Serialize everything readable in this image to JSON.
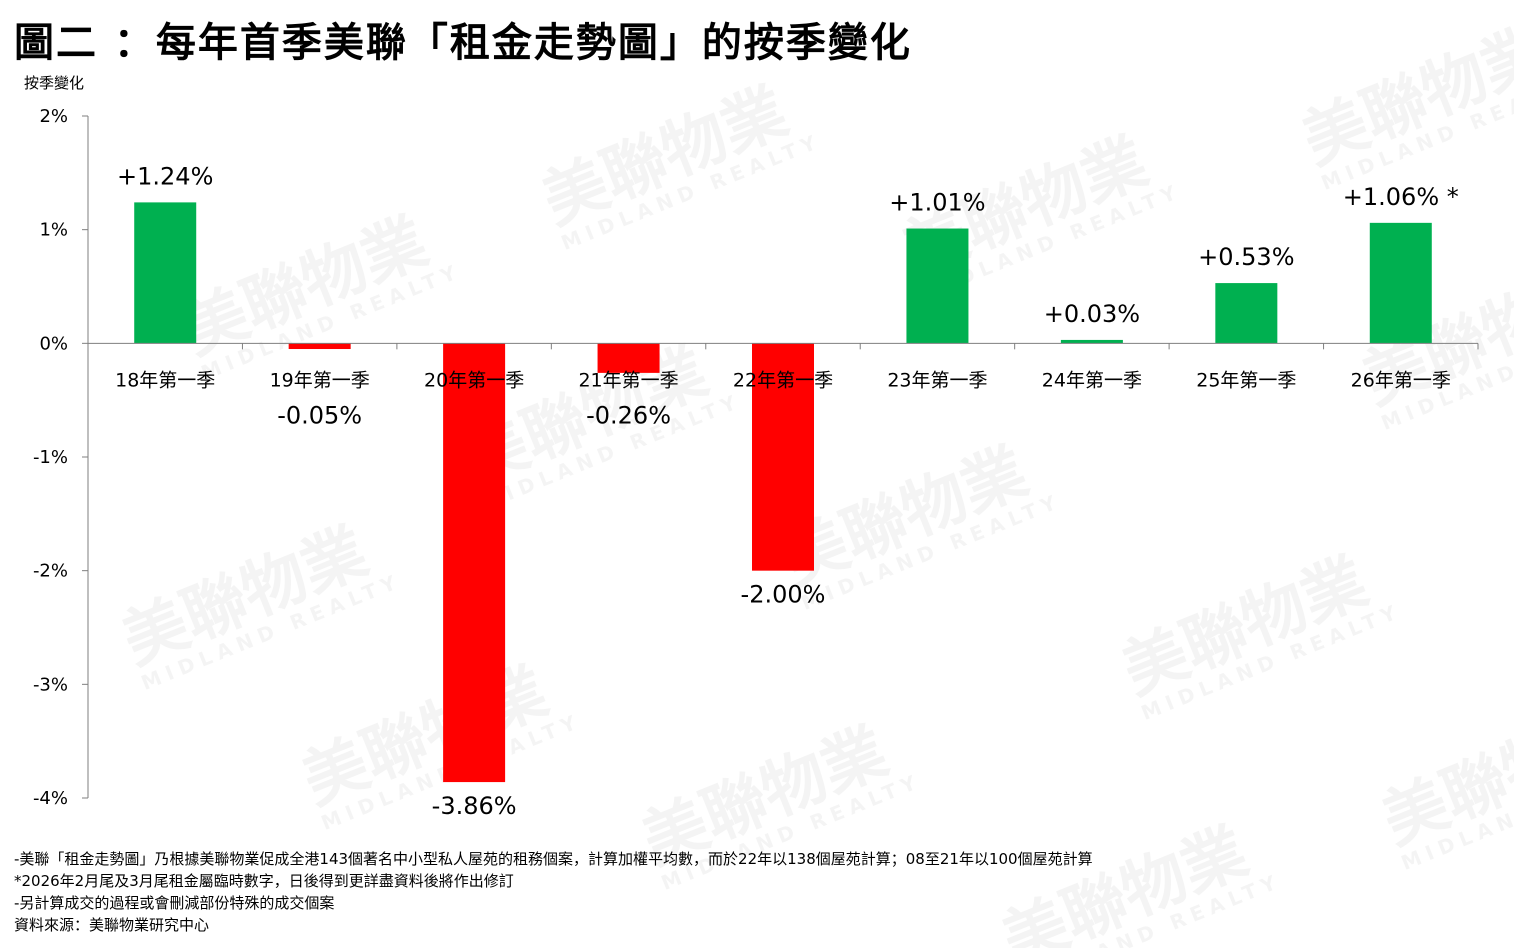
{
  "title": "圖二 ：每年首季美聯「租金走勢圖」的按季變化",
  "watermark": {
    "text": "美聯物業",
    "sub": "MIDLAND REALTY"
  },
  "chart_data": {
    "type": "bar",
    "ylabel": "按季變化",
    "ylim": [
      -4,
      2
    ],
    "yticks": [
      "2%",
      "1%",
      "0%",
      "-1%",
      "-2%",
      "-3%",
      "-4%"
    ],
    "categories": [
      "18年第一季",
      "19年第一季",
      "20年第一季",
      "21年第一季",
      "22年第一季",
      "23年第一季",
      "24年第一季",
      "25年第一季",
      "26年第一季"
    ],
    "values": [
      1.24,
      -0.05,
      -3.86,
      -0.26,
      -2.0,
      1.01,
      0.03,
      0.53,
      1.06
    ],
    "labels": [
      "+1.24%",
      "-0.05%",
      "-3.86%",
      "-0.26%",
      "-2.00%",
      "+1.01%",
      "+0.03%",
      "+0.53%",
      "+1.06% *"
    ],
    "colors": {
      "positive": "#00b050",
      "negative": "#ff0000"
    }
  },
  "notes": [
    "-美聯「租金走勢圖」乃根據美聯物業促成全港143個著名中小型私人屋苑的租務個案，計算加權平均數，而於22年以138個屋苑計算；08至21年以100個屋苑計算",
    "*2026年2月尾及3月尾租金屬臨時數字，日後得到更詳盡資料後將作出修訂",
    "-另計算成交的過程或會刪減部份特殊的成交個案",
    "資料來源：美聯物業研究中心"
  ]
}
